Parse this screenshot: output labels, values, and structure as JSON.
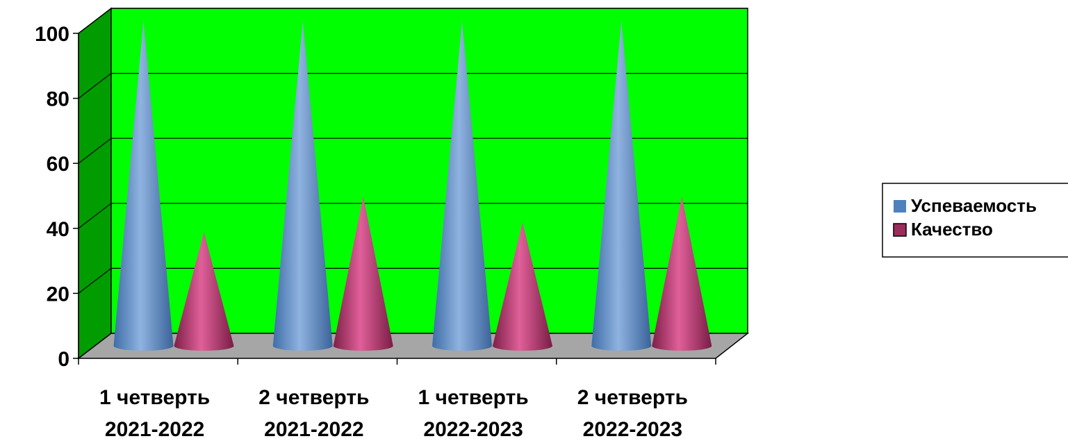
{
  "chart_data": {
    "type": "bar",
    "shape": "cone-3d",
    "categories": [
      [
        "1 четверть",
        "2021-2022"
      ],
      [
        "2 четверть",
        "2021-2022"
      ],
      [
        "1 четверть",
        "2022-2023"
      ],
      [
        "2 четверть",
        "2022-2023"
      ]
    ],
    "series": [
      {
        "name": "Успеваемость",
        "values": [
          100,
          100,
          100,
          100
        ],
        "color": "#4f81bd"
      },
      {
        "name": "Качество",
        "values": [
          35,
          46,
          38,
          46
        ],
        "color": "#9b2d5c"
      }
    ],
    "ylim": [
      0,
      100
    ],
    "yticks": [
      0,
      20,
      40,
      60,
      80,
      100
    ],
    "grid": true,
    "legend": "right",
    "colors": {
      "wall": "#00ff00",
      "side_wall": "#009c00",
      "floor": "#a6a6a6"
    }
  }
}
